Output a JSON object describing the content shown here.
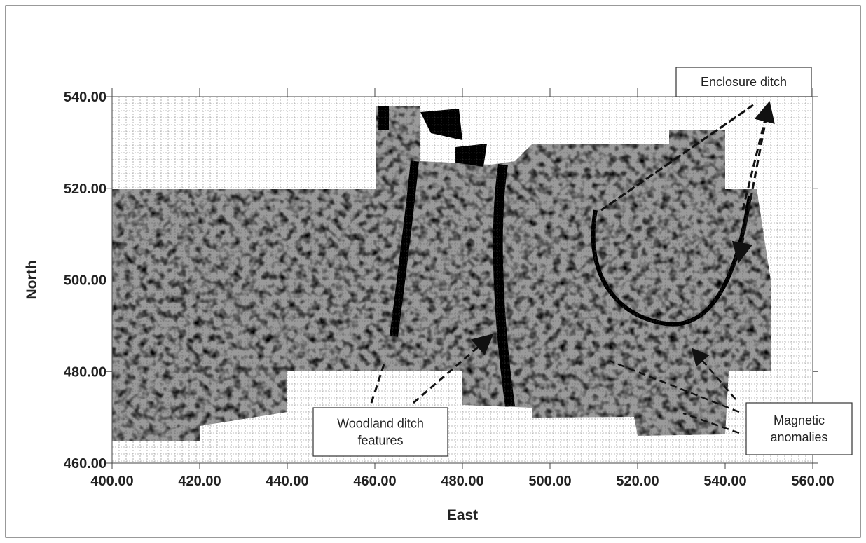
{
  "chart_data": {
    "type": "survey-map",
    "xlabel": "East",
    "ylabel": "North",
    "xlim": [
      400,
      560
    ],
    "ylim": [
      460,
      540
    ],
    "xticks": [
      {
        "value": 400,
        "label": "400.00"
      },
      {
        "value": 420,
        "label": "420.00"
      },
      {
        "value": 440,
        "label": "440.00"
      },
      {
        "value": 460,
        "label": "460.00"
      },
      {
        "value": 480,
        "label": "480.00"
      },
      {
        "value": 500,
        "label": "500.00"
      },
      {
        "value": 520,
        "label": "520.00"
      },
      {
        "value": 540,
        "label": "540.00"
      },
      {
        "value": 560,
        "label": "560.00"
      }
    ],
    "yticks": [
      {
        "value": 460,
        "label": "460.00"
      },
      {
        "value": 480,
        "label": "480.00"
      },
      {
        "value": 500,
        "label": "500.00"
      },
      {
        "value": 520,
        "label": "520.00"
      },
      {
        "value": 540,
        "label": "540.00"
      }
    ],
    "grid": true,
    "annotations": [
      {
        "lines": [
          "Enclosure ditch"
        ]
      },
      {
        "lines": [
          "Woodland ditch",
          "features"
        ]
      },
      {
        "lines": [
          "Magnetic",
          "anomalies"
        ]
      }
    ]
  }
}
